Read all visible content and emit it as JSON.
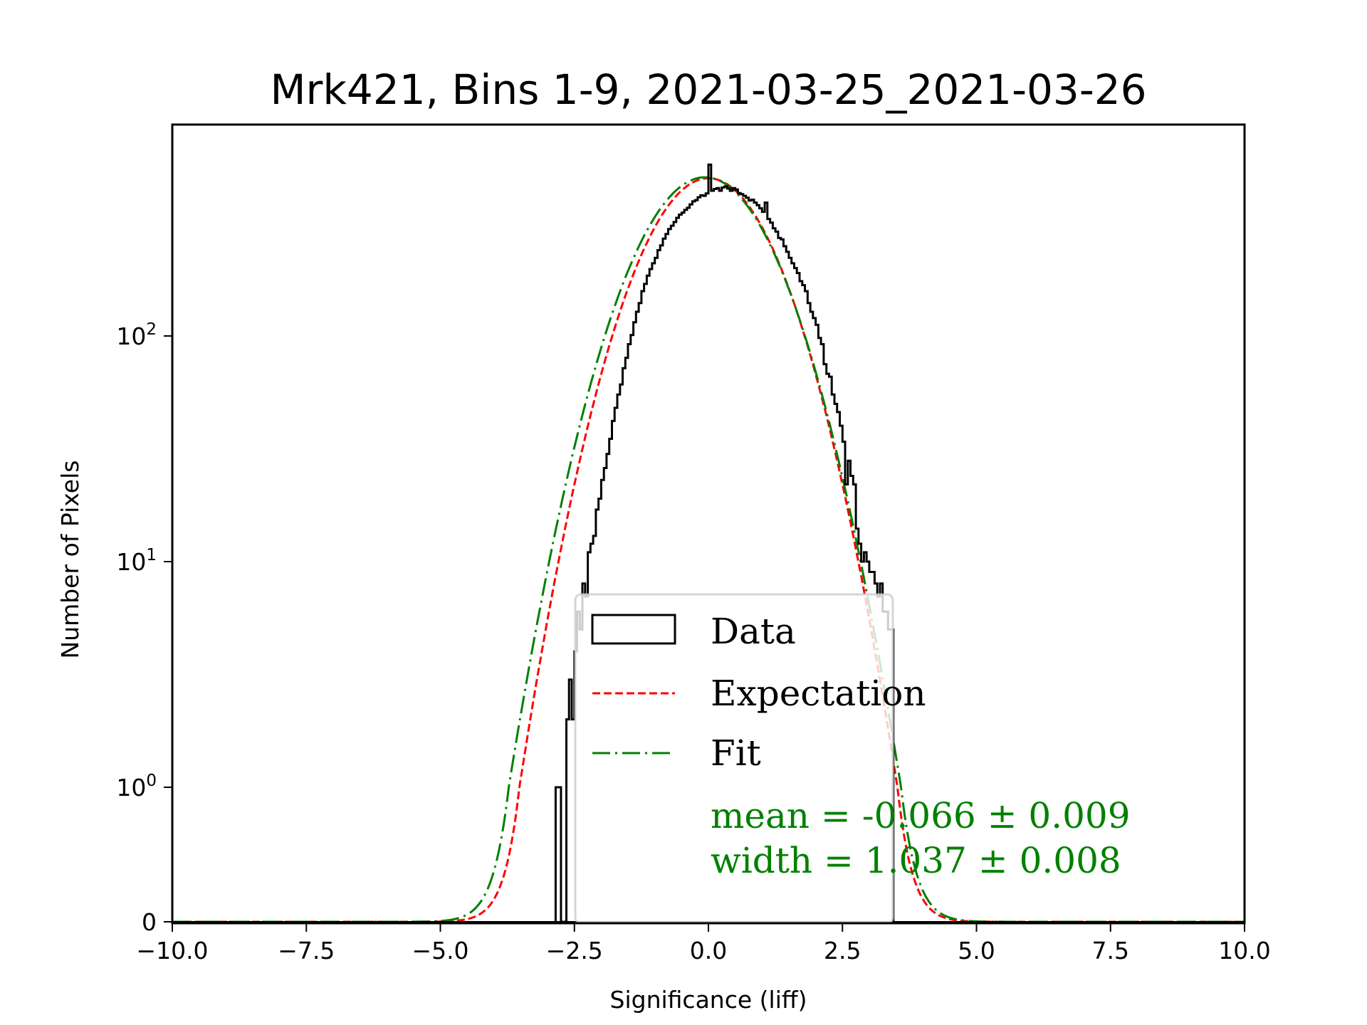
{
  "chart_data": {
    "type": "histogram",
    "title": "Mrk421, Bins 1-9, 2021-03-25_2021-03-26",
    "xlabel": "Significance (liff)",
    "ylabel": "Number of Pixels",
    "xlim": [
      -10,
      10
    ],
    "yscale": "symlog",
    "ylim": [
      0,
      1100
    ],
    "x_ticks": [
      -10,
      -7.5,
      -5,
      -2.5,
      0,
      2.5,
      5,
      7.5,
      10
    ],
    "x_tick_labels": [
      "−10.0",
      "−7.5",
      "−5.0",
      "−2.5",
      "0.0",
      "2.5",
      "5.0",
      "7.5",
      "10.0"
    ],
    "y_ticks": [
      {
        "value": 0,
        "base": "0",
        "exp": ""
      },
      {
        "value": 1,
        "base": "10",
        "exp": "0"
      },
      {
        "value": 10,
        "base": "10",
        "exp": "1"
      },
      {
        "value": 100,
        "base": "10",
        "exp": "2"
      }
    ],
    "histogram": {
      "name": "Data",
      "bin_start": -2.85,
      "bin_width": 0.05,
      "counts": [
        1,
        1,
        0,
        0,
        2,
        3,
        2,
        4,
        6,
        5,
        8,
        7,
        11,
        12,
        13,
        17,
        19,
        23,
        26,
        30,
        35,
        42,
        48,
        55,
        61,
        72,
        80,
        92,
        101,
        115,
        128,
        140,
        158,
        170,
        185,
        198,
        210,
        222,
        240,
        252,
        270,
        283,
        298,
        308,
        320,
        334,
        345,
        352,
        362,
        370,
        383,
        395,
        400,
        412,
        420,
        418,
        428,
        575,
        440,
        448,
        452,
        440,
        455,
        460,
        450,
        440,
        452,
        446,
        430,
        425,
        418,
        410,
        398,
        402,
        390,
        380,
        368,
        355,
        390,
        330,
        318,
        300,
        290,
        272,
        268,
        250,
        236,
        222,
        210,
        200,
        190,
        175,
        168,
        158,
        140,
        128,
        120,
        112,
        98,
        92,
        75,
        68,
        66,
        55,
        50,
        46,
        40,
        34,
        22,
        28,
        24,
        22,
        14,
        12,
        10,
        11,
        10,
        9,
        9,
        8,
        7,
        8,
        6,
        6,
        5,
        5
      ]
    },
    "series": [
      {
        "name": "Expectation",
        "kind": "gaussian",
        "mean": 0.0,
        "width": 1.0,
        "amplitude": 500,
        "color": "#ff0000",
        "dash": "dashed"
      },
      {
        "name": "Fit",
        "kind": "gaussian",
        "mean": -0.066,
        "width": 1.037,
        "amplitude": 505,
        "color": "#008000",
        "dash": "dashdot"
      }
    ],
    "legend": {
      "position": "lower-center",
      "entries": [
        {
          "label": "Data",
          "style": "box"
        },
        {
          "label": "Expectation",
          "style": "dashed",
          "color": "#ff0000"
        },
        {
          "label": "Fit",
          "style": "dashdot",
          "color": "#008000"
        }
      ]
    },
    "annotations": {
      "mean_text": "mean = -0.066 ± 0.009",
      "width_text": "width = 1.037 ± 0.008",
      "color": "#008000"
    },
    "fit": {
      "mean": -0.066,
      "mean_err": 0.009,
      "width": 1.037,
      "width_err": 0.008
    },
    "grid": false
  }
}
